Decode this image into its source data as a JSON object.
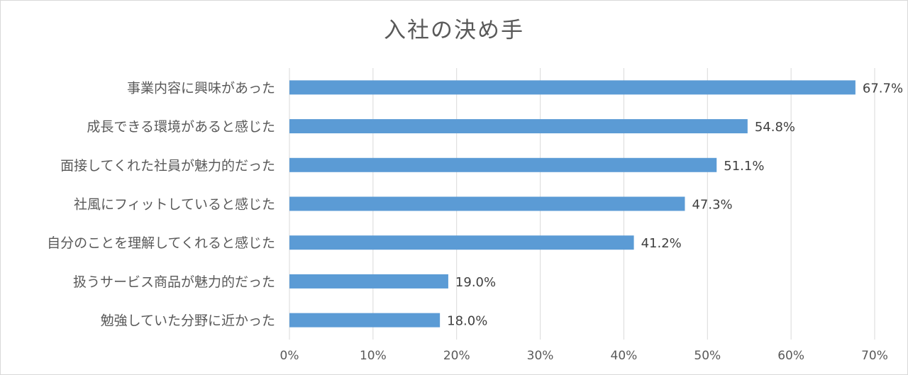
{
  "chart_data": {
    "type": "bar",
    "orientation": "horizontal",
    "title": "入社の決め手",
    "categories": [
      "事業内容に興味があった",
      "成長できる環境があると感じた",
      "面接してくれた社員が魅力的だった",
      "社風にフィットしていると感じた",
      "自分のことを理解してくれると感じた",
      "扱うサービス商品が魅力的だった",
      "勉強していた分野に近かった"
    ],
    "values": [
      67.7,
      54.8,
      51.1,
      47.3,
      41.2,
      19.0,
      18.0
    ],
    "value_labels": [
      "67.7%",
      "54.8%",
      "51.1%",
      "47.3%",
      "41.2%",
      "19.0%",
      "18.0%"
    ],
    "xlim": [
      0,
      70
    ],
    "x_ticks": [
      "0%",
      "10%",
      "20%",
      "30%",
      "40%",
      "50%",
      "60%",
      "70%"
    ],
    "grid": true,
    "bar_color": "#5b9bd5",
    "grid_color": "#d9d9d9"
  }
}
